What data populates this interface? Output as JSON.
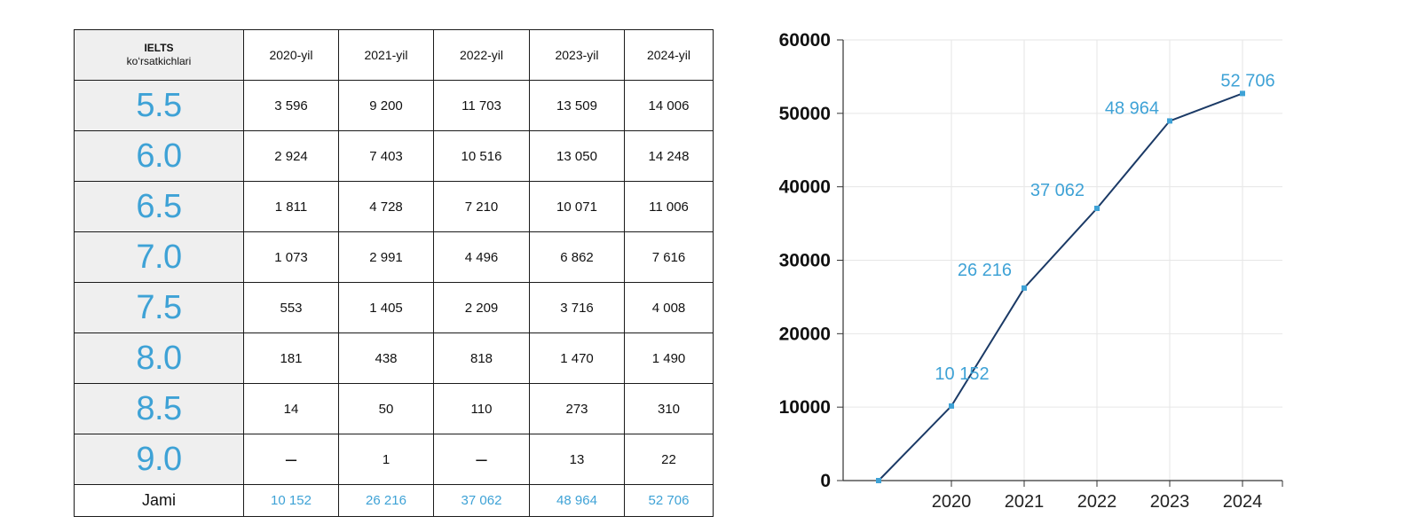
{
  "table": {
    "header_label_line1": "IELTS",
    "header_label_line2": "ko‘rsatkichlari",
    "years": [
      "2020-yil",
      "2021-yil",
      "2022-yil",
      "2023-yil",
      "2024-yil"
    ],
    "rows": [
      {
        "band": "5.5",
        "values": [
          "3 596",
          "9 200",
          "11 703",
          "13 509",
          "14 006"
        ]
      },
      {
        "band": "6.0",
        "values": [
          "2 924",
          "7 403",
          "10 516",
          "13 050",
          "14 248"
        ]
      },
      {
        "band": "6.5",
        "values": [
          "1 811",
          "4 728",
          "7 210",
          "10 071",
          "11 006"
        ]
      },
      {
        "band": "7.0",
        "values": [
          "1 073",
          "2 991",
          "4 496",
          "6 862",
          "7 616"
        ]
      },
      {
        "band": "7.5",
        "values": [
          "553",
          "1 405",
          "2 209",
          "3 716",
          "4 008"
        ]
      },
      {
        "band": "8.0",
        "values": [
          "181",
          "438",
          "818",
          "1 470",
          "1 490"
        ]
      },
      {
        "band": "8.5",
        "values": [
          "14",
          "50",
          "110",
          "273",
          "310"
        ]
      },
      {
        "band": "9.0",
        "values": [
          "–",
          "1",
          "–",
          "13",
          "22"
        ]
      }
    ],
    "total_label": "Jami",
    "totals": [
      "10 152",
      "26 216",
      "37 062",
      "48 964",
      "52 706"
    ]
  },
  "chart_data": {
    "type": "line",
    "title": "",
    "xlabel": "",
    "ylabel": "",
    "x": [
      "",
      "2020",
      "2021",
      "2022",
      "2023",
      "2024"
    ],
    "x_ticks": [
      "2020",
      "2021",
      "2022",
      "2023",
      "2024"
    ],
    "y_ticks": [
      "0",
      "10000",
      "20000",
      "30000",
      "40000",
      "50000",
      "60000"
    ],
    "ylim": [
      0,
      60000
    ],
    "grid": true,
    "series": [
      {
        "values": [
          0,
          10152,
          26216,
          37062,
          48964,
          52706
        ],
        "labels": [
          "",
          "10 152",
          "26 216",
          "37 062",
          "48 964",
          "52 706"
        ]
      }
    ],
    "colors": {
      "line": "#1b3a66",
      "marker": "#3ea2d6",
      "label": "#3ea2d6",
      "grid": "#e6e6e6"
    }
  }
}
